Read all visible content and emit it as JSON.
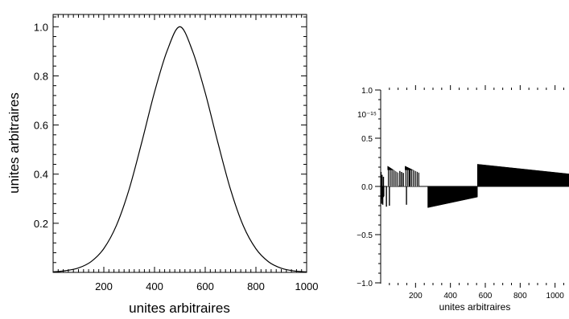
{
  "chart_data": [
    {
      "type": "line",
      "xlabel": "unites arbitraires",
      "ylabel": "unites arbitraires",
      "xlim": [
        0,
        1000
      ],
      "ylim": [
        0,
        1.05
      ],
      "x_ticks": [
        "200",
        "400",
        "600",
        "800",
        "1000"
      ],
      "x_tick_values": [
        200,
        400,
        600,
        800,
        1000
      ],
      "y_ticks": [
        "0.2",
        "0.4",
        "0.6",
        "0.8",
        "1.0"
      ],
      "y_tick_values": [
        0.2,
        0.4,
        0.6,
        0.8,
        1.0
      ],
      "grid": false,
      "series": [
        {
          "x": [
            0,
            50,
            100,
            150,
            200,
            250,
            300,
            350,
            400,
            450,
            500,
            550,
            600,
            650,
            700,
            750,
            800,
            850,
            900,
            950,
            1000
          ],
          "values": [
            0.002,
            0.007,
            0.018,
            0.044,
            0.097,
            0.192,
            0.339,
            0.531,
            0.734,
            0.903,
            1.0,
            0.901,
            0.731,
            0.528,
            0.337,
            0.19,
            0.096,
            0.043,
            0.017,
            0.006,
            0.002
          ]
        }
      ]
    },
    {
      "type": "bar",
      "xlabel": "unites arbitraires",
      "ylabel": "",
      "scale_label": "10⁻¹⁵",
      "xlim": [
        0,
        1080
      ],
      "ylim": [
        -1.0,
        1.0
      ],
      "x_ticks": [
        "200",
        "400",
        "600",
        "800",
        "1000"
      ],
      "x_tick_values": [
        200,
        400,
        600,
        800,
        1000
      ],
      "y_ticks": [
        "1.0",
        "0.5",
        "0.0",
        "−0.5",
        "−1.0"
      ],
      "y_tick_values": [
        1.0,
        0.5,
        0.0,
        -0.5,
        -1.0
      ],
      "grid": false,
      "segments": [
        {
          "x0": 0,
          "x1": 20,
          "y0": -0.15,
          "y1": -0.1
        },
        {
          "x0": 40,
          "x1": 100,
          "y0": 0.21,
          "y1": 0.14
        },
        {
          "x0": 140,
          "x1": 220,
          "y0": 0.21,
          "y1": 0.14
        },
        {
          "x0": 270,
          "x1": 555,
          "y0": -0.22,
          "y1": -0.11
        },
        {
          "x0": 555,
          "x1": 1080,
          "y0": 0.23,
          "y1": 0.13
        }
      ],
      "spikes": [
        {
          "x": 2,
          "y": 0.15
        },
        {
          "x": 5,
          "y": -0.18
        },
        {
          "x": 8,
          "y": 0.12
        },
        {
          "x": 12,
          "y": -0.19
        },
        {
          "x": 16,
          "y": 0.1
        },
        {
          "x": 33,
          "y": -0.21
        },
        {
          "x": 50,
          "y": -0.2
        },
        {
          "x": 110,
          "y": 0.16
        },
        {
          "x": 120,
          "y": 0.15
        },
        {
          "x": 130,
          "y": 0.14
        },
        {
          "x": 148,
          "y": -0.19
        },
        {
          "x": 165,
          "y": 0.18
        }
      ]
    }
  ]
}
